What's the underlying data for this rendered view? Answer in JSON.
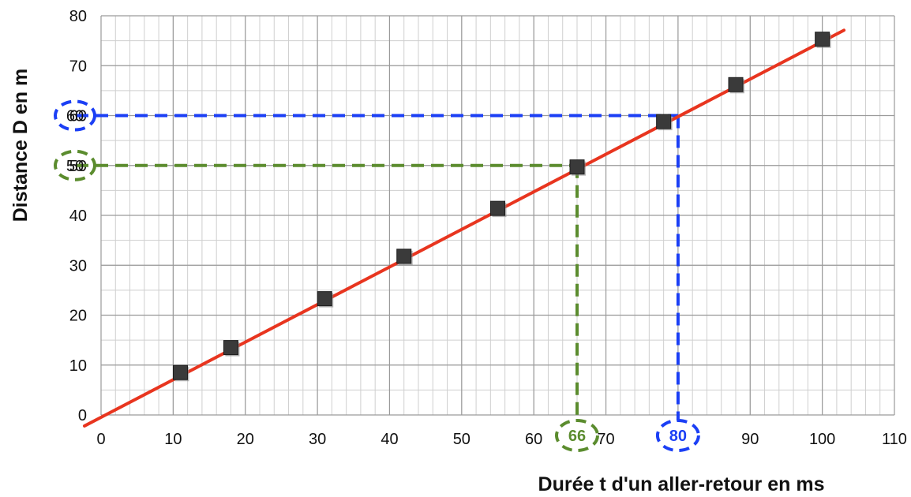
{
  "chart_data": {
    "type": "scatter",
    "title": "",
    "xlabel": "Durée t d'un aller-retour en ms",
    "ylabel": "Distance D en m",
    "xlim": [
      0,
      110
    ],
    "ylim": [
      0,
      80
    ],
    "x_ticks": [
      "0",
      "10",
      "20",
      "30",
      "40",
      "50",
      "60",
      "70",
      "80",
      "90",
      "100",
      "110"
    ],
    "y_ticks": [
      "0",
      "10",
      "20",
      "30",
      "40",
      "50",
      "60",
      "70",
      "80"
    ],
    "grid": true,
    "minor_grid_x": 2,
    "minor_grid_y": 5,
    "series": [
      {
        "kind": "points",
        "marker": "square",
        "color": "#3a3a3a",
        "points": [
          {
            "x": 11,
            "y": 8.5
          },
          {
            "x": 18,
            "y": 13.5
          },
          {
            "x": 31,
            "y": 23.3
          },
          {
            "x": 42,
            "y": 31.8
          },
          {
            "x": 55,
            "y": 41.4
          },
          {
            "x": 66,
            "y": 49.7
          },
          {
            "x": 78,
            "y": 58.8
          },
          {
            "x": 88,
            "y": 66.2
          },
          {
            "x": 100,
            "y": 75.3
          }
        ]
      },
      {
        "kind": "fit-line",
        "color": "#e8351f",
        "from": {
          "x": -2.3,
          "y": -2.2
        },
        "to": {
          "x": 103,
          "y": 77.1
        }
      }
    ],
    "annotations": [
      {
        "color": "#5b8c2e",
        "x": 66,
        "y": 50,
        "x_label": "66",
        "y_label": "50"
      },
      {
        "color": "#1b3ff5",
        "x": 80,
        "y": 60,
        "x_label": "80",
        "y_label": "60"
      }
    ]
  }
}
